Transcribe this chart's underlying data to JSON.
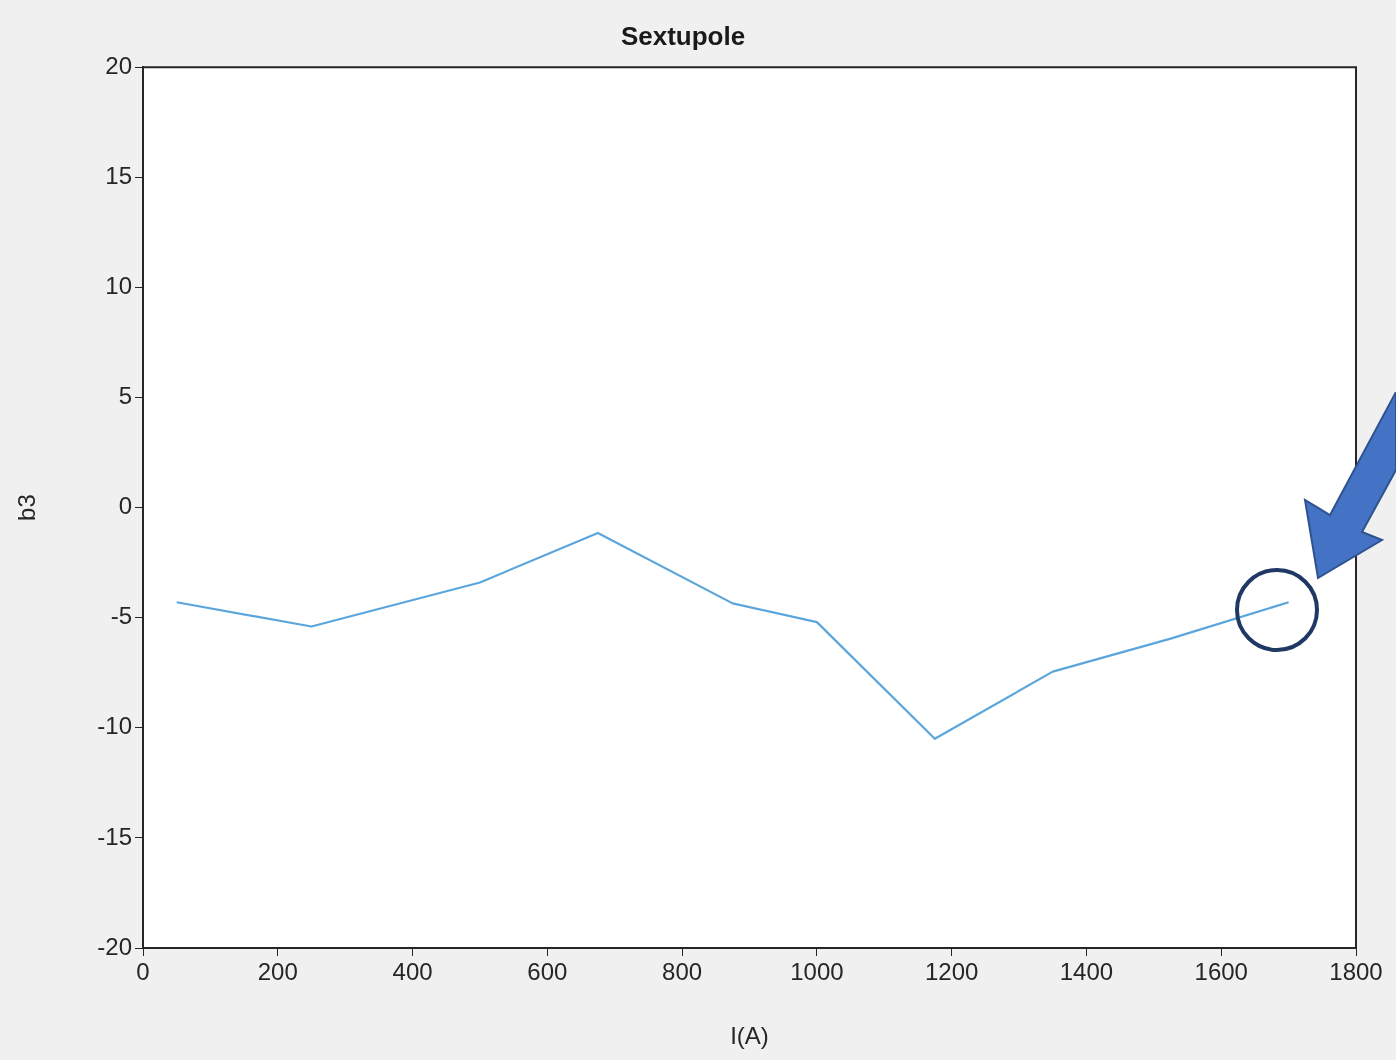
{
  "chart_data": {
    "type": "line",
    "title": "Sextupole",
    "xlabel": "I(A)",
    "ylabel": "b3",
    "x": [
      50,
      250,
      500,
      675,
      875,
      1000,
      1175,
      1350,
      1525,
      1700
    ],
    "series": [
      {
        "color": "#5aa6dc",
        "values": [
          -4.3,
          -5.4,
          -3.4,
          -1.15,
          -4.35,
          -5.2,
          -10.5,
          -7.45,
          -5.95,
          -4.3
        ]
      }
    ],
    "xlim": [
      0,
      1800
    ],
    "xticks": [
      0,
      200,
      400,
      600,
      800,
      1000,
      1200,
      1400,
      1600,
      1800
    ],
    "ylim": [
      -20,
      20
    ],
    "yticks": [
      -20,
      -15,
      -10,
      -5,
      0,
      5,
      10,
      15,
      20
    ],
    "grid": false,
    "legend": false,
    "marker": "none",
    "line_style": "solid"
  }
}
